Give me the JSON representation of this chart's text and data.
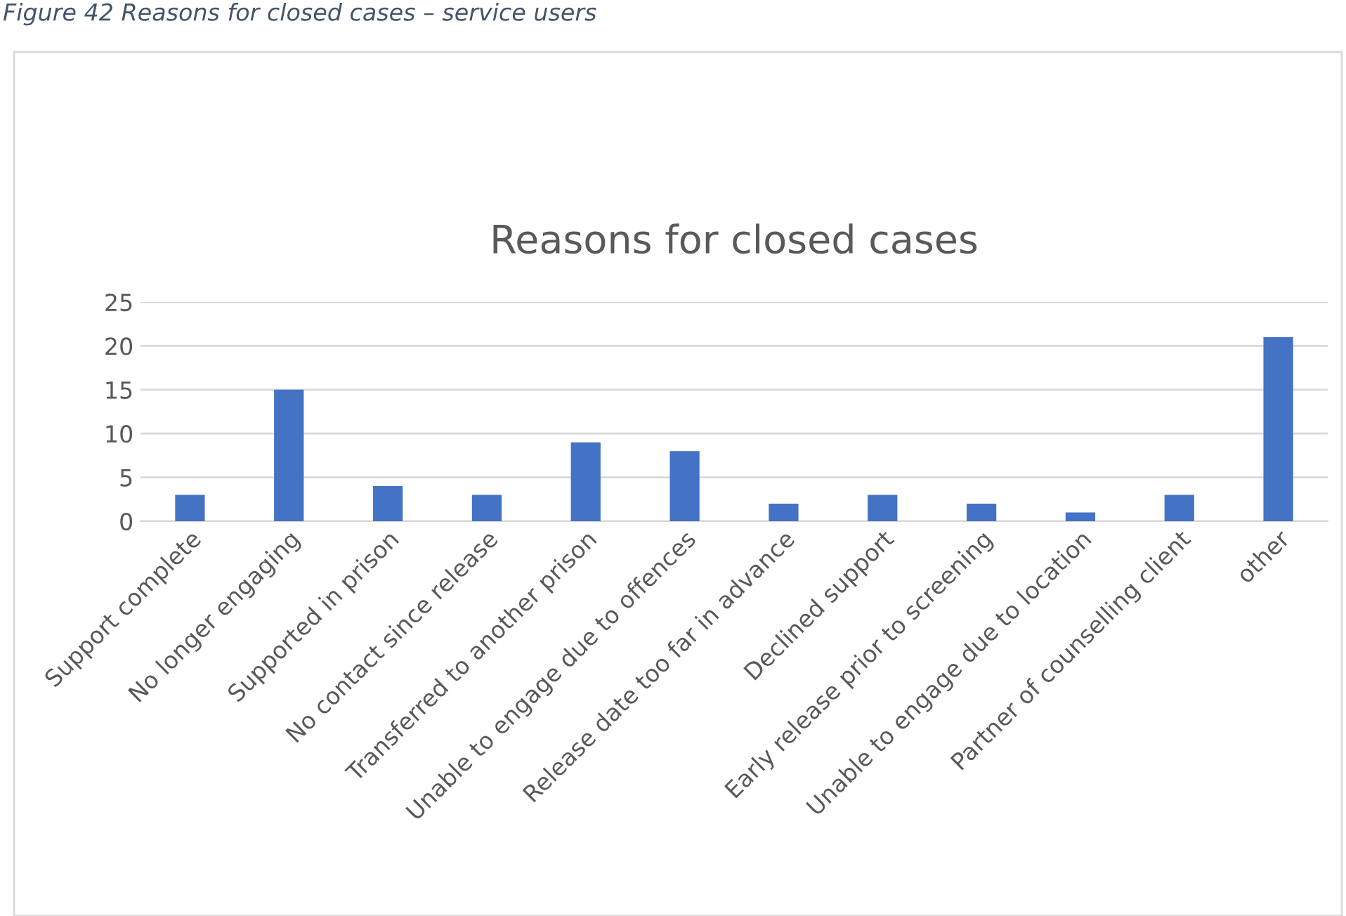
{
  "chart_data": {
    "type": "bar",
    "title": "Reasons for closed cases",
    "annotations": [
      "Figure 42 Reasons for closed cases – service users"
    ],
    "categories": [
      "Support complete",
      "No longer engaging",
      "Supported in prison",
      "No contact since release",
      "Transferred to another prison",
      "Unable to engage due to offences",
      "Release date too far in advance",
      "Declined support",
      "Early release prior to screening",
      "Unable to engage due to location",
      "Partner of counselling client",
      "other"
    ],
    "values": [
      3,
      15,
      4,
      3,
      9,
      8,
      2,
      3,
      2,
      1,
      3,
      21
    ],
    "color": "#4472c4",
    "ylim": [
      0,
      25
    ],
    "yticks": [
      0,
      5,
      10,
      15,
      20,
      25
    ],
    "grid": "y",
    "legend": false
  }
}
